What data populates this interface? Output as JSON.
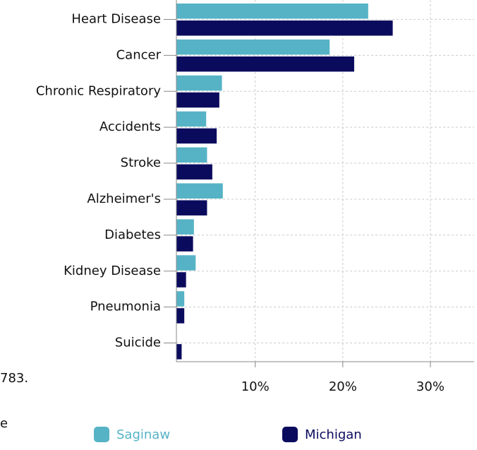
{
  "chart_data": {
    "type": "bar",
    "orientation": "horizontal",
    "categories": [
      "Heart Disease",
      "Cancer",
      "Chronic Respiratory",
      "Accidents",
      "Stroke",
      "Alzheimer's",
      "Diabetes",
      "Kidney Disease",
      "Pneumonia",
      "Suicide"
    ],
    "series": [
      {
        "name": "Saginaw",
        "color": "#56b3c6",
        "values": [
          22.9,
          18.5,
          6.2,
          4.4,
          4.5,
          6.3,
          3.0,
          3.2,
          1.9,
          null
        ]
      },
      {
        "name": "Michigan",
        "color": "#0b0b5e",
        "values": [
          25.7,
          21.3,
          5.9,
          5.6,
          5.1,
          4.5,
          2.9,
          2.1,
          1.9,
          1.6
        ]
      }
    ],
    "xlim": [
      1,
      35
    ],
    "xticks": [
      {
        "value": 10,
        "label": "10%"
      },
      {
        "value": 20,
        "label": "20%"
      },
      {
        "value": 30,
        "label": "30%"
      }
    ],
    "grid": true,
    "legend": "bottom",
    "fragments": [
      "783.",
      "e"
    ]
  }
}
